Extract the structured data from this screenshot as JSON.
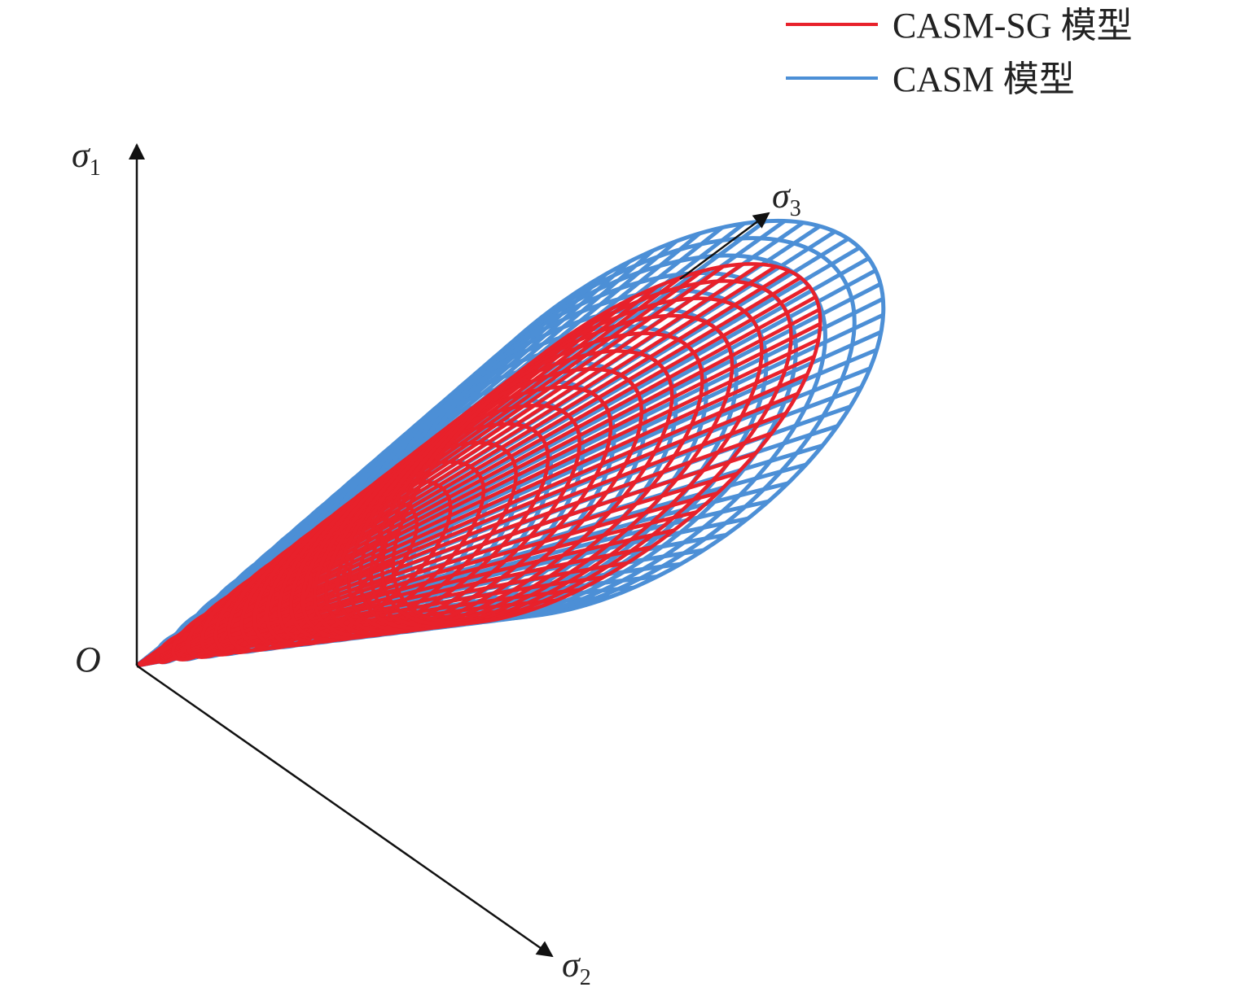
{
  "legend": {
    "items": [
      {
        "label": "CASM-SG 模型",
        "color": "#e8212b"
      },
      {
        "label": "CASM 模型",
        "color": "#4c8fd6"
      }
    ]
  },
  "axes": {
    "origin_label": "O",
    "sigma1": {
      "symbol": "σ",
      "subscript": "1"
    },
    "sigma2": {
      "symbol": "σ",
      "subscript": "2"
    },
    "sigma3": {
      "symbol": "σ",
      "subscript": "3"
    }
  },
  "colors": {
    "casm": "#4c8fd6",
    "casm_sg": "#e8212b",
    "axis": "#111111"
  }
}
